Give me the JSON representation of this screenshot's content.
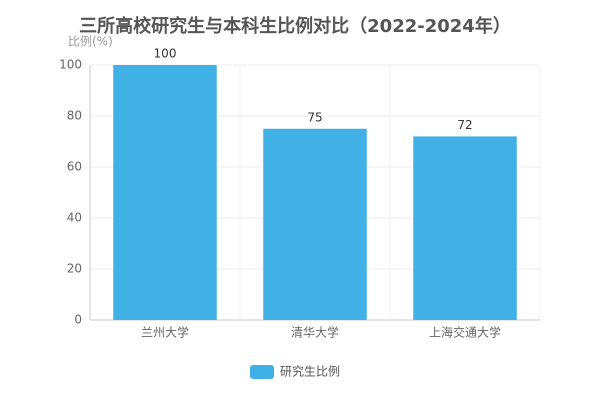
{
  "chart_data": {
    "type": "bar",
    "title": "三所高校研究生与本科生比例对比（2022-2024年）",
    "y_label": "比例(%)",
    "categories": [
      "兰州大学",
      "清华大学",
      "上海交通大学"
    ],
    "series": [
      {
        "name": "研究生比例",
        "color": "#41b0e4",
        "values": [
          100,
          75,
          72
        ]
      }
    ],
    "ylim": [
      0,
      100
    ],
    "yticks": [
      0,
      20,
      40,
      60,
      80,
      100
    ],
    "grid": true,
    "legend": "bottom"
  }
}
